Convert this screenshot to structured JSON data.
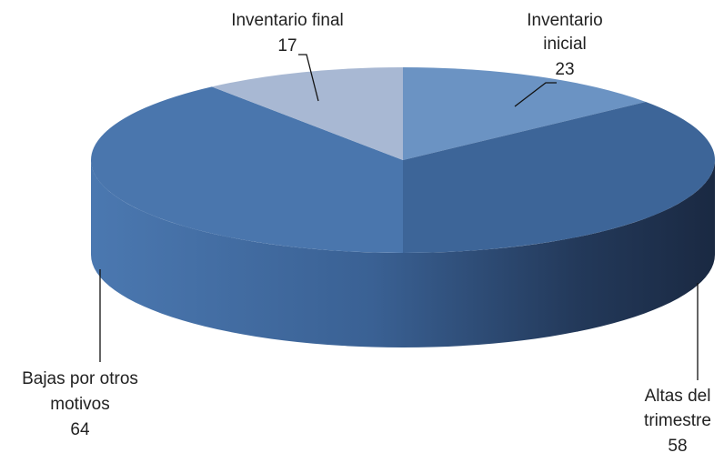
{
  "chart_data": {
    "type": "pie",
    "title": "",
    "slices": [
      {
        "name": "Inventario inicial",
        "label_lines": [
          "Inventario",
          "inicial"
        ],
        "value": 23,
        "color": "#6b93c3"
      },
      {
        "name": "Altas del trimestre",
        "label_lines": [
          "Altas del",
          "trimestre"
        ],
        "value": 58,
        "color": "#3d6598"
      },
      {
        "name": "Bajas por otros motivos",
        "label_lines": [
          "Bajas por otros",
          "motivos"
        ],
        "value": 64,
        "color": "#4a76ad"
      },
      {
        "name": "Inventario final",
        "label_lines": [
          "Inventario final"
        ],
        "value": 17,
        "color": "#a8b8d3"
      }
    ],
    "style": "3d-pie",
    "legend": "none",
    "data_labels": "outside with leader lines"
  }
}
